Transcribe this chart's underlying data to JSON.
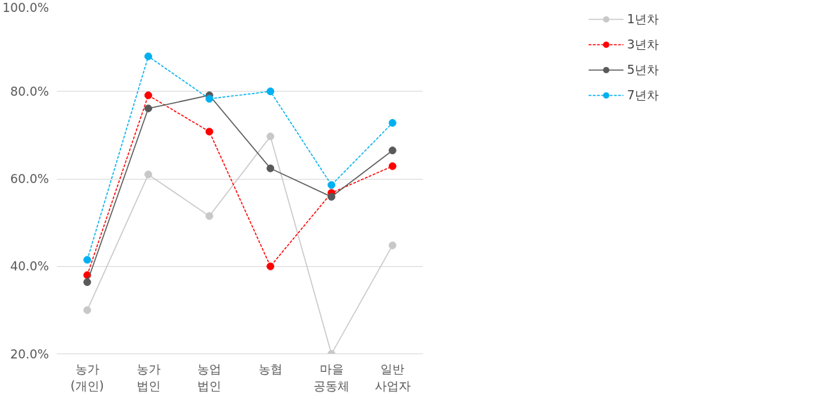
{
  "chart_data": {
    "type": "line",
    "categories": [
      "농가\n(개인)",
      "농가\n법인",
      "농업\n법인",
      "농협",
      "마을\n공동체",
      "일반\n사업자"
    ],
    "series": [
      {
        "name": "1년차",
        "color": "#c8c8c8",
        "line_style": "solid",
        "values": [
          30.0,
          61.0,
          51.5,
          69.7,
          20.0,
          44.8
        ]
      },
      {
        "name": "3년차",
        "color": "#ff0000",
        "line_style": "dashed",
        "values": [
          38.0,
          79.1,
          70.8,
          40.0,
          56.8,
          62.9
        ]
      },
      {
        "name": "5년차",
        "color": "#595959",
        "line_style": "solid",
        "values": [
          36.4,
          76.1,
          79.1,
          62.4,
          55.9,
          66.5
        ]
      },
      {
        "name": "7년차",
        "color": "#00b0f0",
        "line_style": "dashed",
        "values": [
          41.5,
          88.0,
          78.3,
          80.0,
          58.6,
          72.8
        ]
      }
    ],
    "ylim": [
      20,
      100
    ],
    "yticks": [
      {
        "value": 20,
        "label": "20.0%"
      },
      {
        "value": 40,
        "label": "40.0%"
      },
      {
        "value": 60,
        "label": "60.0%"
      },
      {
        "value": 80,
        "label": "80.0%"
      },
      {
        "value": 100,
        "label": "100.0%"
      }
    ],
    "grid": "y",
    "legend": "top right",
    "marker": "circle"
  }
}
